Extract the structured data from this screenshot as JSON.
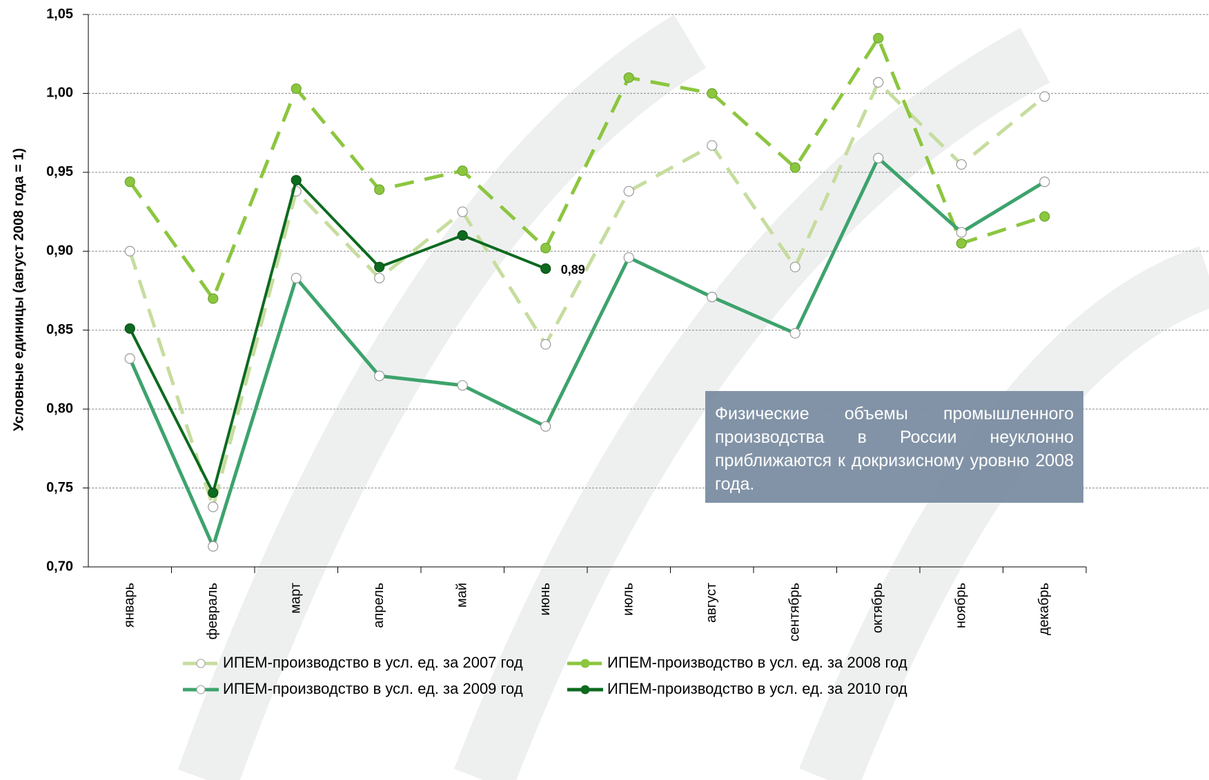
{
  "chart_data": {
    "type": "line",
    "y_label": "Условные единицы (август 2008 года = 1)",
    "categories": [
      "январь",
      "февраль",
      "март",
      "апрель",
      "май",
      "июнь",
      "июль",
      "август",
      "сентябрь",
      "октябрь",
      "ноябрь",
      "декабрь"
    ],
    "ylim": [
      0.7,
      1.05
    ],
    "yticks": [
      {
        "value": 0.7,
        "label": "0,70"
      },
      {
        "value": 0.75,
        "label": "0,75"
      },
      {
        "value": 0.8,
        "label": "0,80"
      },
      {
        "value": 0.85,
        "label": "0,85"
      },
      {
        "value": 0.9,
        "label": "0,90"
      },
      {
        "value": 0.95,
        "label": "0,95"
      },
      {
        "value": 1.0,
        "label": "1,00"
      },
      {
        "value": 1.05,
        "label": "1,05"
      }
    ],
    "grid": true,
    "series": [
      {
        "name": "ИПЕМ-производство в усл. ед. за 2007 год",
        "color": "#c6dd9e",
        "dashed": true,
        "hollow": true,
        "values": [
          0.9,
          0.738,
          0.938,
          0.883,
          0.925,
          0.841,
          0.938,
          0.967,
          0.89,
          1.007,
          0.955,
          0.998
        ]
      },
      {
        "name": "ИПЕМ-производство в усл. ед. за 2008 год",
        "color": "#8cc63f",
        "dashed": true,
        "hollow": false,
        "values": [
          0.944,
          0.87,
          1.003,
          0.939,
          0.951,
          0.902,
          1.01,
          1.0,
          0.953,
          1.035,
          0.905,
          0.922
        ]
      },
      {
        "name": "ИПЕМ-производство в усл. ед. за 2009 год",
        "color": "#3da36c",
        "dashed": false,
        "hollow": true,
        "values": [
          0.832,
          0.713,
          0.883,
          0.821,
          0.815,
          0.789,
          0.896,
          0.871,
          0.848,
          0.959,
          0.912,
          0.944
        ]
      },
      {
        "name": "ИПЕМ-производство в усл. ед. за 2010 год",
        "color": "#0d6a1f",
        "dashed": false,
        "hollow": false,
        "values": [
          0.851,
          0.747,
          0.945,
          0.89,
          0.91,
          0.889,
          null,
          null,
          null,
          null,
          null,
          null
        ],
        "value_labels": [
          null,
          null,
          null,
          null,
          null,
          "0,89",
          null,
          null,
          null,
          null,
          null,
          null
        ]
      }
    ],
    "annotation": "Физические объемы промышленного производства в России неуклонно приближаются к докризисному уровню 2008 года."
  }
}
